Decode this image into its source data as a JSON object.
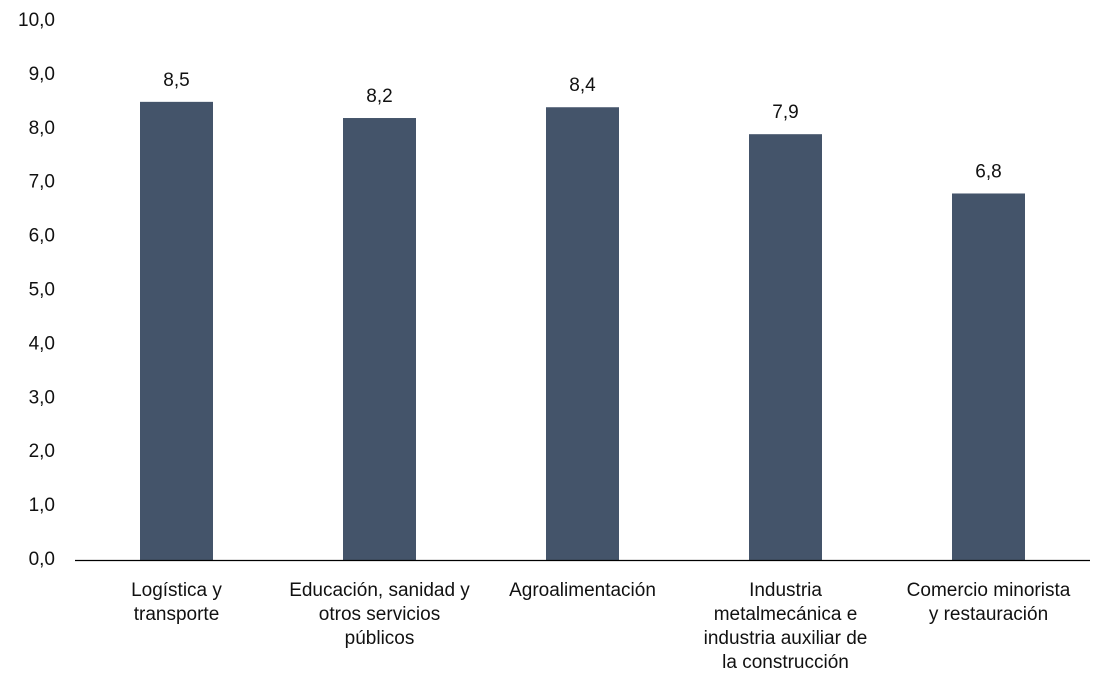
{
  "chart_data": {
    "type": "bar",
    "categories": [
      [
        "Logística y",
        "transporte"
      ],
      [
        "Educación, sanidad y",
        "otros servicios",
        "públicos"
      ],
      [
        "Agroalimentación"
      ],
      [
        "Industria",
        "metalmecánica e",
        "industria auxiliar de",
        "la construcción"
      ],
      [
        "Comercio minorista",
        "y restauración"
      ]
    ],
    "values": [
      8.5,
      8.2,
      8.4,
      7.9,
      6.8
    ],
    "value_labels": [
      "8,5",
      "8,2",
      "8,4",
      "7,9",
      "6,8"
    ],
    "y_ticks": [
      "0,0",
      "1,0",
      "2,0",
      "3,0",
      "4,0",
      "5,0",
      "6,0",
      "7,0",
      "8,0",
      "9,0",
      "10,0"
    ],
    "ylim": [
      0,
      10
    ],
    "grid": false,
    "legend": "none",
    "colors": {
      "bar": "#44546A",
      "axis": "#000000",
      "text": "#111111"
    }
  }
}
